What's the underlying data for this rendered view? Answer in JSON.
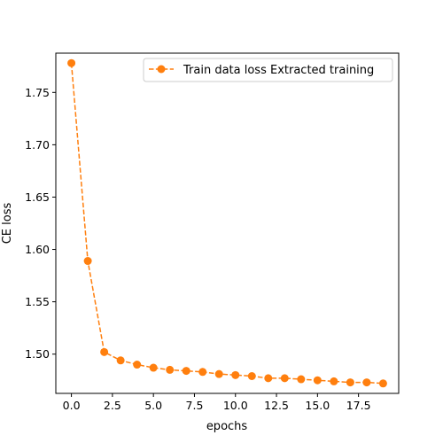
{
  "chart_data": {
    "type": "line",
    "title": "",
    "xlabel": "epochs",
    "ylabel": "CE loss",
    "xlim": [
      -0.95,
      19.95
    ],
    "ylim": [
      1.4625,
      1.7875
    ],
    "x_ticks": [
      0.0,
      2.5,
      5.0,
      7.5,
      10.0,
      12.5,
      15.0,
      17.5
    ],
    "x_tick_labels": [
      "0.0",
      "2.5",
      "5.0",
      "7.5",
      "10.0",
      "12.5",
      "15.0",
      "17.5"
    ],
    "y_ticks": [
      1.5,
      1.55,
      1.6,
      1.65,
      1.7,
      1.75
    ],
    "y_tick_labels": [
      "1.50",
      "1.55",
      "1.60",
      "1.65",
      "1.70",
      "1.75"
    ],
    "grid": false,
    "legend_position": "top-right",
    "series": [
      {
        "name": "Train data loss Extracted training",
        "color": "#ff7f0e",
        "line_style": "dashed",
        "marker": "circle",
        "x": [
          0,
          1,
          2,
          3,
          4,
          5,
          6,
          7,
          8,
          9,
          10,
          11,
          12,
          13,
          14,
          15,
          16,
          17,
          18,
          19
        ],
        "values": [
          1.778,
          1.589,
          1.502,
          1.494,
          1.49,
          1.487,
          1.485,
          1.484,
          1.483,
          1.481,
          1.48,
          1.479,
          1.477,
          1.477,
          1.476,
          1.475,
          1.474,
          1.473,
          1.473,
          1.472
        ]
      }
    ]
  }
}
